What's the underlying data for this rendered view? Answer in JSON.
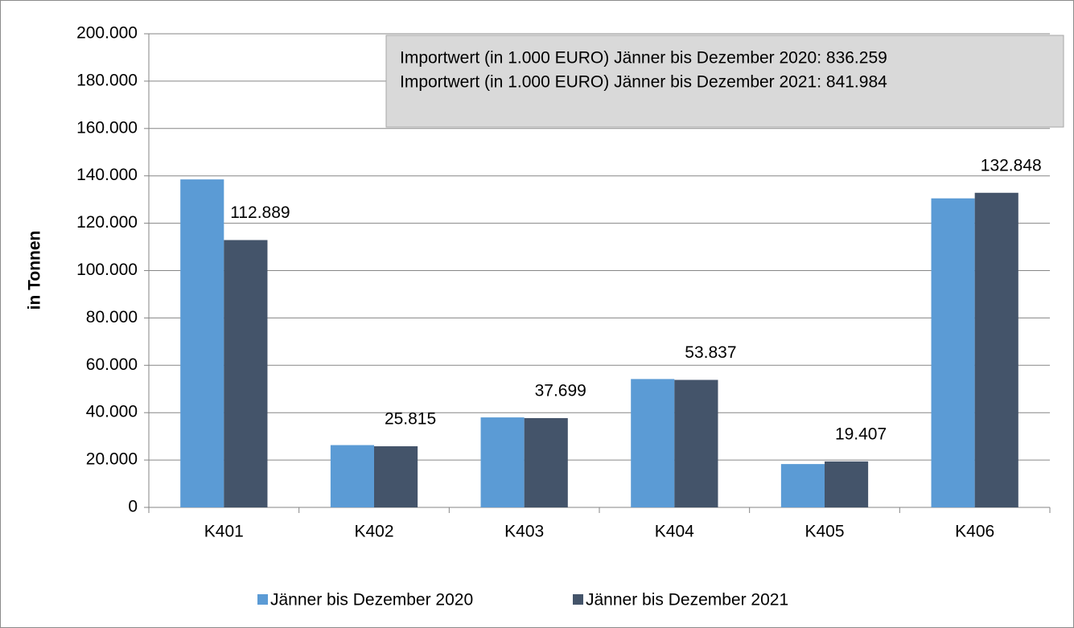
{
  "chart_data": {
    "type": "bar",
    "ylabel": "in Tonnen",
    "categories": [
      "K401",
      "K402",
      "K403",
      "K404",
      "K405",
      "K406"
    ],
    "series": [
      {
        "name": "Jänner bis Dezember 2020",
        "color": "#5b9bd5",
        "values": [
          138500,
          26300,
          38000,
          54200,
          18300,
          130500
        ]
      },
      {
        "name": "Jänner bis Dezember 2021",
        "color": "#44546a",
        "values": [
          112889,
          25815,
          37699,
          53837,
          19407,
          132848
        ],
        "value_labels": [
          "112.889",
          "25.815",
          "37.699",
          "53.837",
          "19.407",
          "132.848"
        ]
      }
    ],
    "annotations": [
      "Importwert (in 1.000 EURO) Jänner bis Dezember 2020: 836.259",
      "Importwert (in 1.000 EURO) Jänner bis Dezember 2021: 841.984"
    ],
    "ylim": [
      0,
      200000
    ],
    "yticks": [
      0,
      {
        "value": 20000,
        "label": "20.000"
      },
      {
        "value": 40000,
        "label": "40.000"
      },
      {
        "value": 60000,
        "label": "60.000"
      },
      {
        "value": 80000,
        "label": "80.000"
      },
      {
        "value": 100000,
        "label": "100.000"
      },
      {
        "value": 120000,
        "label": "120.000"
      },
      {
        "value": 140000,
        "label": "140.000"
      },
      {
        "value": 160000,
        "label": "160.000"
      },
      {
        "value": 180000,
        "label": "180.000"
      },
      {
        "value": 200000,
        "label": "200.000"
      }
    ],
    "grid": true,
    "legend": "bottom"
  }
}
